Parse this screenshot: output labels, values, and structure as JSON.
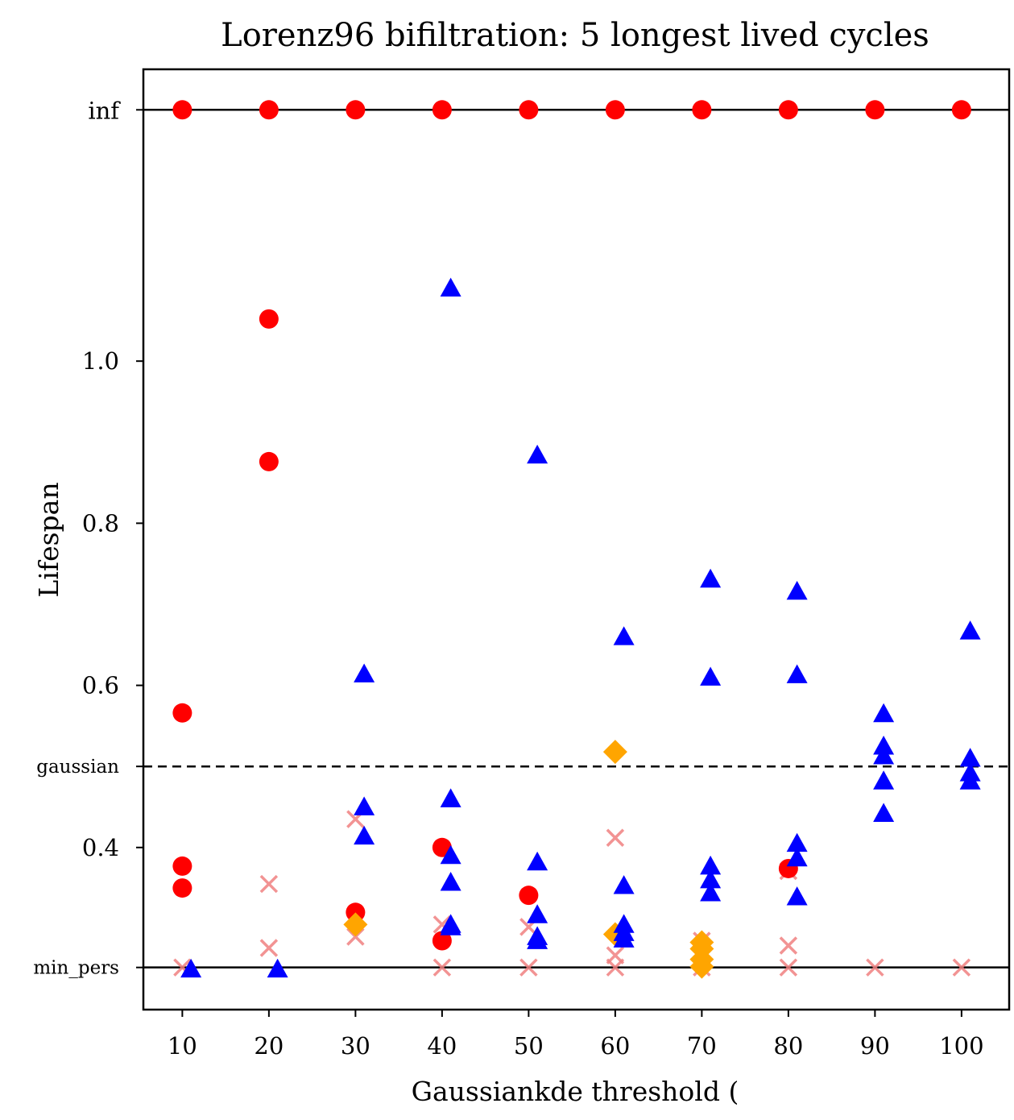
{
  "chart_data": {
    "type": "scatter",
    "title": "Lorenz96 bifiltration: 5 longest lived cycles",
    "xlabel": "Gaussiankde threshold (",
    "ylabel": "Lifespan",
    "xlim": [
      5.5,
      105.5
    ],
    "ylim": [
      0.2,
      1.36
    ],
    "xticks": [
      10,
      20,
      30,
      40,
      50,
      60,
      70,
      80,
      90,
      100
    ],
    "xtick_labels": [
      "10",
      "20",
      "30",
      "40",
      "50",
      "60",
      "70",
      "80",
      "90",
      "100"
    ],
    "yticks": [
      0.4,
      0.6,
      0.8,
      1.0
    ],
    "ytick_labels": [
      "0.4",
      "0.6",
      "0.8",
      "1.0"
    ],
    "reference_lines": [
      {
        "label": "inf",
        "y": 1.31,
        "style": "solid"
      },
      {
        "label": "gaussian",
        "y": 0.5,
        "style": "dashed"
      },
      {
        "label": "min_pers",
        "y": 0.252,
        "style": "solid"
      }
    ],
    "colors": {
      "red": "#ff0000",
      "blue": "#0000ff",
      "orange": "#ffa500",
      "pink": "#f08080"
    },
    "series": [
      {
        "name": "red circles",
        "marker": "circle",
        "color": "#ff0000",
        "x": [
          10,
          20,
          30,
          40,
          50,
          60,
          70,
          80,
          90,
          100,
          10,
          10,
          10,
          20,
          20,
          30,
          40,
          40,
          50,
          80
        ],
        "y": [
          1.31,
          1.31,
          1.31,
          1.31,
          1.31,
          1.31,
          1.31,
          1.31,
          1.31,
          1.31,
          0.566,
          0.377,
          0.35,
          1.052,
          0.876,
          0.32,
          0.4,
          0.285,
          0.341,
          0.374
        ]
      },
      {
        "name": "blue triangles",
        "marker": "triangle",
        "color": "#0000ff",
        "x": [
          11,
          21,
          31,
          31,
          31,
          41,
          41,
          41,
          41,
          41,
          41,
          51,
          51,
          51,
          51,
          51,
          61,
          61,
          61,
          61,
          61,
          71,
          71,
          71,
          71,
          71,
          81,
          81,
          81,
          81,
          81,
          91,
          91,
          91,
          91,
          91,
          101,
          101,
          101,
          101
        ],
        "y": [
          0.25,
          0.25,
          0.614,
          0.45,
          0.414,
          1.09,
          0.46,
          0.39,
          0.357,
          0.305,
          0.302,
          0.884,
          0.382,
          0.317,
          0.29,
          0.285,
          0.66,
          0.353,
          0.305,
          0.295,
          0.287,
          0.731,
          0.61,
          0.377,
          0.36,
          0.344,
          0.716,
          0.613,
          0.405,
          0.387,
          0.339,
          0.565,
          0.525,
          0.513,
          0.482,
          0.442,
          0.667,
          0.51,
          0.492,
          0.482
        ]
      },
      {
        "name": "orange diamonds",
        "marker": "diamond",
        "color": "#ffa500",
        "x": [
          30,
          60,
          60,
          70,
          70,
          70,
          70
        ],
        "y": [
          0.305,
          0.518,
          0.293,
          0.283,
          0.275,
          0.262,
          0.253
        ]
      },
      {
        "name": "pink crosses",
        "marker": "x",
        "color": "#f08080",
        "x": [
          10,
          20,
          20,
          30,
          30,
          40,
          40,
          50,
          50,
          60,
          60,
          60,
          70,
          70,
          80,
          80,
          80,
          90,
          100
        ],
        "y": [
          0.252,
          0.355,
          0.276,
          0.435,
          0.29,
          0.305,
          0.252,
          0.302,
          0.252,
          0.412,
          0.267,
          0.252,
          0.252,
          0.285,
          0.371,
          0.279,
          0.252,
          0.252,
          0.252
        ]
      }
    ]
  }
}
